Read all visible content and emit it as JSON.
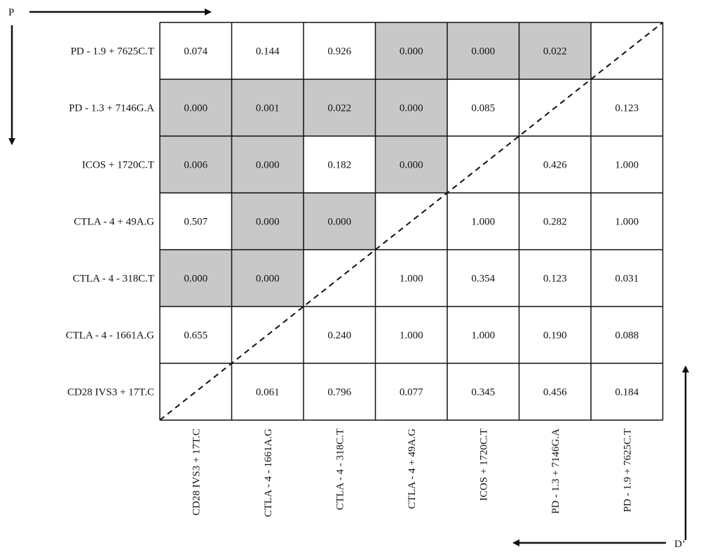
{
  "chart_data": {
    "type": "heatmap",
    "row_labels": [
      "PD - 1.9 + 7625C.T",
      "PD - 1.3 + 7146G.A",
      "ICOS + 1720C.T",
      "CTLA - 4 + 49A.G",
      "CTLA - 4 - 318C.T",
      "CTLA - 4 - 1661A.G",
      "CD28 IVS3 + 17T.C"
    ],
    "column_labels": [
      "CD28 IVS3 + 17T.C",
      "CTLA - 4 - 1661A.G",
      "CTLA - 4 - 318C.T",
      "CTLA - 4 + 49A.G",
      "ICOS + 1720C.T",
      "PD - 1.3 + 7146G.A",
      "PD - 1.9 + 7625C.T"
    ],
    "cells": [
      [
        "0.074",
        "0.144",
        "0.926",
        "0.000",
        "0.000",
        "0.022",
        ""
      ],
      [
        "0.000",
        "0.001",
        "0.022",
        "0.000",
        "0.085",
        "",
        "0.123"
      ],
      [
        "0.006",
        "0.000",
        "0.182",
        "0.000",
        "",
        "0.426",
        "1.000"
      ],
      [
        "0.507",
        "0.000",
        "0.000",
        "",
        "1.000",
        "0.282",
        "1.000"
      ],
      [
        "0.000",
        "0.000",
        "",
        "1.000",
        "0.354",
        "0.123",
        "0.031"
      ],
      [
        "0.655",
        "",
        "0.240",
        "1.000",
        "1.000",
        "0.190",
        "0.088"
      ],
      [
        "",
        "0.061",
        "0.796",
        "0.077",
        "0.345",
        "0.456",
        "0.184"
      ]
    ],
    "shaded": [
      [
        false,
        false,
        false,
        true,
        true,
        true,
        false
      ],
      [
        true,
        true,
        true,
        true,
        false,
        false,
        false
      ],
      [
        true,
        true,
        false,
        true,
        false,
        false,
        false
      ],
      [
        false,
        true,
        true,
        false,
        false,
        false,
        false
      ],
      [
        true,
        true,
        false,
        false,
        false,
        false,
        false
      ],
      [
        false,
        false,
        false,
        false,
        false,
        false,
        false
      ],
      [
        false,
        false,
        false,
        false,
        false,
        false,
        false
      ]
    ],
    "axis_p_label": "P",
    "axis_d_label": "D’",
    "shade_color": "#c8c8c8",
    "grid": true,
    "diagonal": "dashed"
  }
}
